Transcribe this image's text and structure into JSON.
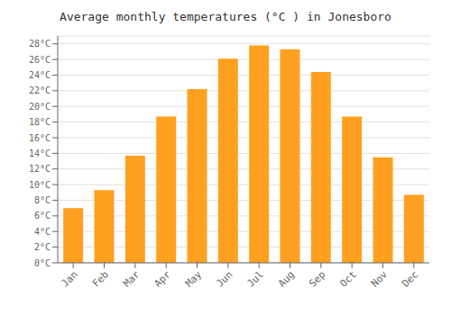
{
  "chart_data": {
    "type": "bar",
    "title": "Average monthly temperatures (°C ) in Jonesboro",
    "categories": [
      "Jan",
      "Feb",
      "Mar",
      "Apr",
      "May",
      "Jun",
      "Jul",
      "Aug",
      "Sep",
      "Oct",
      "Nov",
      "Dec"
    ],
    "values": [
      7.0,
      9.3,
      13.7,
      18.7,
      22.2,
      26.1,
      27.8,
      27.3,
      24.4,
      18.7,
      13.5,
      8.7
    ],
    "color": "#FFA020",
    "ylim": [
      0,
      29
    ],
    "yticks": [
      {
        "value": 0,
        "label": "0°C"
      },
      {
        "value": 2,
        "label": "2°C"
      },
      {
        "value": 4,
        "label": "4°C"
      },
      {
        "value": 6,
        "label": "6°C"
      },
      {
        "value": 8,
        "label": "8°C"
      },
      {
        "value": 10,
        "label": "10°C"
      },
      {
        "value": 12,
        "label": "12°C"
      },
      {
        "value": 14,
        "label": "14°C"
      },
      {
        "value": 16,
        "label": "16°C"
      },
      {
        "value": 18,
        "label": "18°C"
      },
      {
        "value": 20,
        "label": "20°C"
      },
      {
        "value": 22,
        "label": "22°C"
      },
      {
        "value": 24,
        "label": "24°C"
      },
      {
        "value": 26,
        "label": "26°C"
      },
      {
        "value": 28,
        "label": "28°C"
      }
    ],
    "grid": true
  }
}
